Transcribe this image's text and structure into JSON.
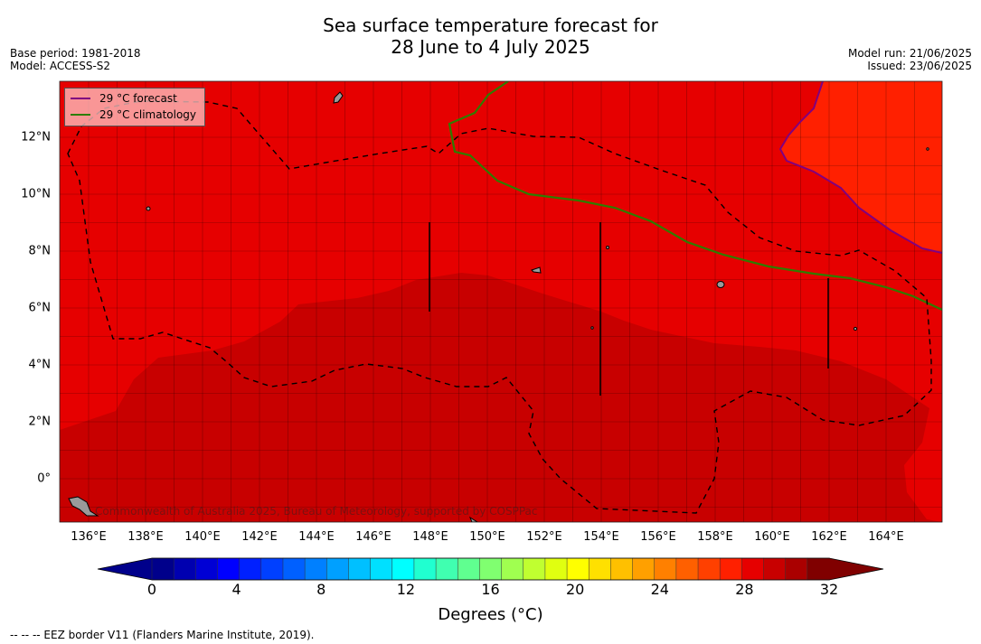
{
  "title": {
    "line1": "Sea surface temperature forecast for",
    "line2": "28 June to 4 July 2025"
  },
  "meta": {
    "base_period": "Base period: 1981-2018",
    "model": "Model: ACCESS-S2",
    "model_run": "Model run: 21/06/2025",
    "issued": "Issued: 23/06/2025"
  },
  "map": {
    "lon_ticks": [
      "136°E",
      "138°E",
      "140°E",
      "142°E",
      "144°E",
      "146°E",
      "148°E",
      "150°E",
      "152°E",
      "154°E",
      "156°E",
      "158°E",
      "160°E",
      "162°E",
      "164°E"
    ],
    "lat_ticks": [
      "12°N",
      "10°N",
      "8°N",
      "6°N",
      "4°N",
      "2°N",
      "0°"
    ],
    "credit": "Commonwealth of Australia 2025, Bureau of Meteorology, supported by COSPPac",
    "colors": {
      "band_28_29": "#e60000",
      "band_29_30": "#c80000",
      "band_27_28": "#ff2000",
      "land": "#9a9a9a",
      "grid": "#000000"
    }
  },
  "legend": {
    "forecast_label": "29 °C  forecast",
    "forecast_color": "#800080",
    "climatology_label": "29 °C  climatology",
    "climatology_color": "#2e7d00"
  },
  "colorbar": {
    "tick_labels": [
      "0",
      "4",
      "8",
      "12",
      "16",
      "20",
      "24",
      "28",
      "32"
    ],
    "title": "Degrees (°C)",
    "colors": [
      "#00008b",
      "#0000b0",
      "#0000d5",
      "#0000ff",
      "#0020ff",
      "#0040ff",
      "#0060ff",
      "#0080ff",
      "#00a0ff",
      "#00c0ff",
      "#00e0ff",
      "#00ffff",
      "#20ffd0",
      "#40ffb0",
      "#60ff90",
      "#80ff70",
      "#a0ff50",
      "#c0ff30",
      "#e0ff10",
      "#ffff00",
      "#ffe000",
      "#ffc000",
      "#ffa000",
      "#ff8000",
      "#ff6000",
      "#ff4000",
      "#ff2000",
      "#e60000",
      "#c80000",
      "#aa0000",
      "#800000"
    ],
    "under_color": "#00008b",
    "over_color": "#800000"
  },
  "footer": {
    "eez_note": "--  --  -- EEZ border V11 (Flanders Marine Institute, 2019)."
  }
}
